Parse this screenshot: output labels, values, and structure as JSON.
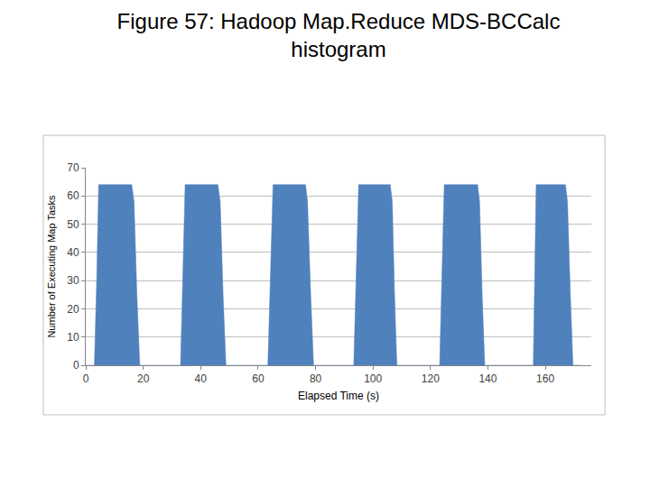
{
  "chart_data": {
    "type": "area",
    "title": "Figure 57: Hadoop Map.Reduce MDS-BCCalc histogram",
    "x_label": "Elapsed Time (s)",
    "y_label": "Number of Executing Map Tasks",
    "x": [
      0,
      3,
      3.8,
      4.5,
      16,
      16.8,
      17.8,
      18.8,
      33,
      33.8,
      34.6,
      46,
      46.8,
      47.8,
      48.8,
      63.4,
      64.2,
      65.2,
      76.5,
      77.2,
      78.3,
      79.3,
      93.3,
      94,
      95,
      106,
      106.7,
      107.5,
      108.3,
      123.2,
      123.9,
      124.8,
      136.4,
      137.1,
      138,
      138.9,
      155.8,
      156.3,
      156.8,
      167,
      167.7,
      168.7,
      169.6,
      172
    ],
    "values": [
      0,
      0,
      30,
      64,
      64,
      58,
      25,
      0,
      0,
      30,
      64,
      64,
      58,
      25,
      0,
      0,
      30,
      64,
      64,
      58,
      25,
      0,
      0,
      30,
      64,
      64,
      58,
      25,
      0,
      0,
      30,
      64,
      64,
      58,
      25,
      0,
      0,
      30,
      64,
      64,
      58,
      25,
      0,
      0
    ],
    "color": "#4f81bd",
    "xlim": [
      0,
      176
    ],
    "xticks": [
      0,
      20,
      40,
      60,
      80,
      100,
      120,
      140,
      160
    ],
    "ylim": [
      0,
      70
    ],
    "yticks": [
      0,
      10,
      20,
      30,
      40,
      50,
      60,
      70
    ],
    "grid": true
  }
}
